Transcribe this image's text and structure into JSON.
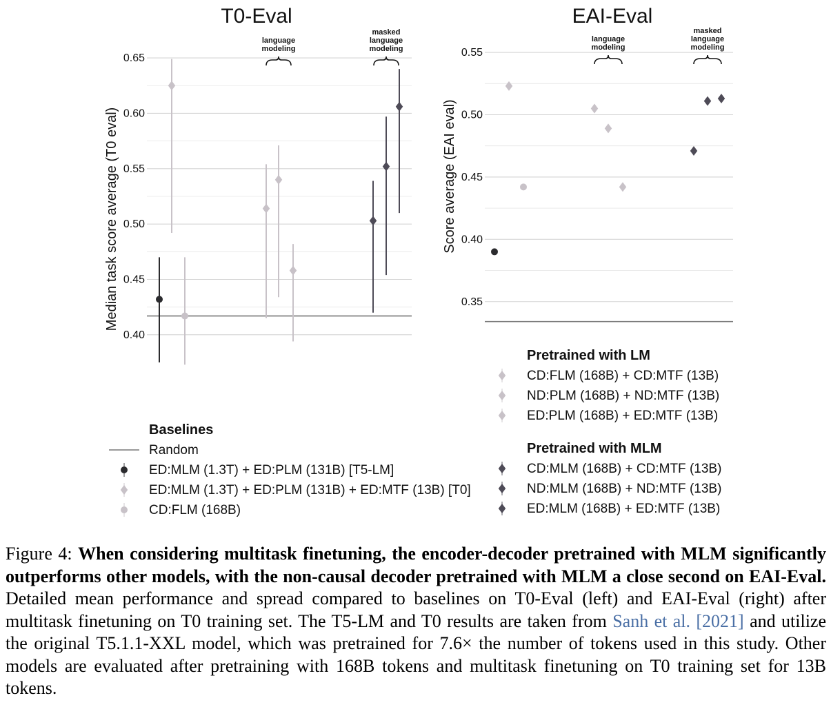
{
  "chart_data": [
    {
      "type": "scatter",
      "title": "T0-Eval",
      "ylabel": "Median task score average (T0 eval)",
      "ylim": [
        0.38,
        0.66
      ],
      "yticks": [
        "0.40",
        "0.45",
        "0.50",
        "0.55",
        "0.60",
        "0.65"
      ],
      "grid": true,
      "random_baseline": 0.417,
      "annotations": [
        {
          "text": [
            "language",
            "modeling"
          ]
        },
        {
          "text": [
            "masked",
            "language",
            "modeling"
          ]
        }
      ],
      "points": [
        {
          "series": "ED:MLM (1.3T) + ED:PLM (131B) [T5-LM]",
          "y": 0.432,
          "low": 0.375,
          "high": 0.47,
          "marker": "circle",
          "color": "#2b2b2e"
        },
        {
          "series": "ED:MLM (1.3T) + ED:PLM (131B) + ED:MTF (13B) [T0]",
          "y": 0.625,
          "low": 0.492,
          "high": 0.649,
          "marker": "diamond",
          "color": "#c8c2c8"
        },
        {
          "series": "CD:FLM (168B)",
          "y": 0.417,
          "low": 0.373,
          "high": 0.47,
          "marker": "circle",
          "color": "#c8c2c8"
        },
        {
          "series": "CD:FLM (168B) + CD:MTF (13B)",
          "y": 0.514,
          "low": 0.415,
          "high": 0.554,
          "marker": "diamond",
          "color": "#c8c2c8"
        },
        {
          "series": "ND:PLM (168B) + ND:MTF (13B)",
          "y": 0.54,
          "low": 0.434,
          "high": 0.571,
          "marker": "diamond",
          "color": "#c8c2c8"
        },
        {
          "series": "ED:PLM (168B) + ED:MTF (13B)",
          "y": 0.458,
          "low": 0.394,
          "high": 0.482,
          "marker": "diamond",
          "color": "#c8c2c8"
        },
        {
          "series": "CD:MLM (168B) + CD:MTF (13B)",
          "y": 0.503,
          "low": 0.42,
          "high": 0.539,
          "marker": "diamond",
          "color": "#4e4b57"
        },
        {
          "series": "ND:MLM (168B) + ND:MTF (13B)",
          "y": 0.552,
          "low": 0.454,
          "high": 0.597,
          "marker": "diamond",
          "color": "#4e4b57"
        },
        {
          "series": "ED:MLM (168B) + ED:MTF (13B)",
          "y": 0.606,
          "low": 0.51,
          "high": 0.64,
          "marker": "diamond",
          "color": "#4e4b57"
        }
      ]
    },
    {
      "type": "scatter",
      "title": "EAI-Eval",
      "ylabel": "Score average (EAI eval)",
      "ylim": [
        0.32,
        0.56
      ],
      "yticks": [
        "0.35",
        "0.40",
        "0.45",
        "0.50",
        "0.55"
      ],
      "grid": true,
      "random_baseline": 0.334,
      "annotations": [
        {
          "text": [
            "language",
            "modeling"
          ]
        },
        {
          "text": [
            "masked",
            "language",
            "modeling"
          ]
        }
      ],
      "points": [
        {
          "series": "ED:MLM (1.3T) + ED:PLM (131B) [T5-LM]",
          "y": 0.39,
          "marker": "circle",
          "color": "#2b2b2e"
        },
        {
          "series": "ED:MLM (1.3T) + ED:PLM (131B) + ED:MTF (13B) [T0]",
          "y": 0.523,
          "marker": "diamond",
          "color": "#c8c2c8"
        },
        {
          "series": "CD:FLM (168B)",
          "y": 0.442,
          "marker": "circle",
          "color": "#c8c2c8"
        },
        {
          "series": "CD:FLM (168B) + CD:MTF (13B)",
          "y": 0.505,
          "marker": "diamond",
          "color": "#c8c2c8"
        },
        {
          "series": "ND:PLM (168B) + ND:MTF (13B)",
          "y": 0.489,
          "marker": "diamond",
          "color": "#c8c2c8"
        },
        {
          "series": "ED:PLM (168B) + ED:MTF (13B)",
          "y": 0.442,
          "marker": "diamond",
          "color": "#c8c2c8"
        },
        {
          "series": "CD:MLM (168B) + CD:MTF (13B)",
          "y": 0.471,
          "marker": "diamond",
          "color": "#4e4b57"
        },
        {
          "series": "ND:MLM (168B) + ND:MTF (13B)",
          "y": 0.511,
          "marker": "diamond",
          "color": "#4e4b57"
        },
        {
          "series": "ED:MLM (168B) + ED:MTF (13B)",
          "y": 0.513,
          "marker": "diamond",
          "color": "#4e4b57"
        }
      ]
    }
  ],
  "legends": {
    "baselines": {
      "title": "Baselines",
      "items": [
        {
          "label": "Random",
          "marker": "line",
          "color": "#777777"
        },
        {
          "label": "ED:MLM (1.3T) + ED:PLM (131B) [T5-LM]",
          "marker": "circle",
          "color": "#2b2b2e"
        },
        {
          "label": "ED:MLM (1.3T) + ED:PLM (131B) + ED:MTF (13B) [T0]",
          "marker": "diamond",
          "color": "#c8c2c8"
        },
        {
          "label": "CD:FLM (168B)",
          "marker": "circle",
          "color": "#c8c2c8"
        }
      ]
    },
    "lm": {
      "title": "Pretrained with LM",
      "items": [
        {
          "label": "CD:FLM (168B) + CD:MTF (13B)",
          "marker": "diamond",
          "color": "#c8c2c8"
        },
        {
          "label": "ND:PLM (168B) + ND:MTF (13B)",
          "marker": "diamond",
          "color": "#c8c2c8"
        },
        {
          "label": "ED:PLM (168B) + ED:MTF (13B)",
          "marker": "diamond",
          "color": "#c8c2c8"
        }
      ]
    },
    "mlm": {
      "title": "Pretrained with MLM",
      "items": [
        {
          "label": "CD:MLM (168B) + CD:MTF (13B)",
          "marker": "diamond",
          "color": "#4e4b57"
        },
        {
          "label": "ND:MLM (168B) + ND:MTF (13B)",
          "marker": "diamond",
          "color": "#4e4b57"
        },
        {
          "label": "ED:MLM (168B) + ED:MTF (13B)",
          "marker": "diamond",
          "color": "#4e4b57"
        }
      ]
    }
  },
  "caption": {
    "label": "Figure 4:",
    "bold": "When considering multitask finetuning, the encoder-decoder pretrained with MLM significantly outperforms other models, with the non-causal decoder pretrained with MLM a close second on EAI-Eval.",
    "text1": "Detailed mean performance and spread compared to baselines on T0-Eval (left) and EAI-Eval (right) after multitask finetuning on T0 training set. The T5-LM and T0 results are taken from",
    "citation": "Sanh et al. [2021]",
    "text2": "and utilize the original T5.1.1-XXL model, which was pretrained for 7.6× the number of tokens used in this study. Other models are evaluated after pretraining with 168B tokens and multitask finetuning on T0 training set for 13B tokens."
  }
}
